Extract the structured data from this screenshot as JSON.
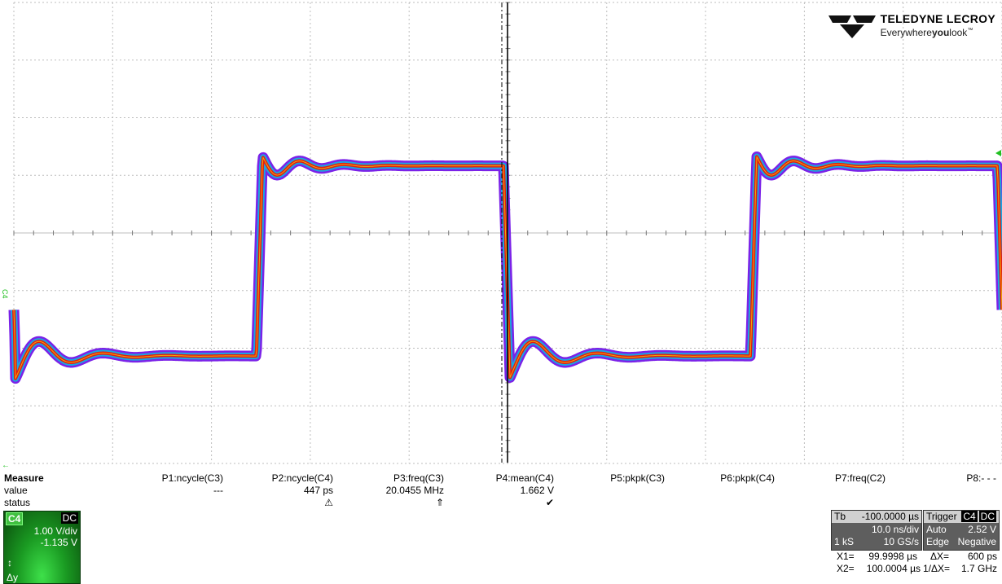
{
  "brand": {
    "wordmark": "TELEDYNE LECROY",
    "tagline_pre": "Everywhere",
    "tagline_bold": "you",
    "tagline_post": "look",
    "tm": "™"
  },
  "channel_marker": "C4",
  "colors": {
    "grid": "#bdbdbd",
    "trace_outer": "#7b22e8",
    "trace_mid": "#1aa6e0",
    "trace_core": "#e21c12",
    "trace_hot": "#f0d000",
    "marker": "#22c022"
  },
  "measure": {
    "header": "Measure",
    "rows": [
      "value",
      "status"
    ],
    "params": [
      {
        "name": "P1:ncycle(C3)",
        "value": "---",
        "status": ""
      },
      {
        "name": "P2:ncycle(C4)",
        "value": "447 ps",
        "status": "⚠"
      },
      {
        "name": "P3:freq(C3)",
        "value": "20.0455 MHz",
        "status": "⇑"
      },
      {
        "name": "P4:mean(C4)",
        "value": "1.662 V",
        "status": "✔"
      },
      {
        "name": "P5:pkpk(C3)",
        "value": "",
        "status": ""
      },
      {
        "name": "P6:pkpk(C4)",
        "value": "",
        "status": ""
      },
      {
        "name": "P7:freq(C2)",
        "value": "",
        "status": ""
      },
      {
        "name": "P8:- - -",
        "value": "",
        "status": ""
      }
    ]
  },
  "channel": {
    "label": "C4",
    "coupling": "DC",
    "vdiv": "1.00 V/div",
    "offset": "-1.135 V",
    "delta": "Δy"
  },
  "timebase": {
    "label": "Tb",
    "delay": "-100.0000 µs",
    "tdiv": "10.0 ns/div",
    "samples": "1 kS",
    "rate": "10 GS/s"
  },
  "trigger": {
    "label": "Trigger",
    "src": "C4",
    "coupling": "DC",
    "mode": "Auto",
    "level": "2.52 V",
    "type": "Edge",
    "slope": "Negative"
  },
  "cursors": {
    "x1_label": "X1=",
    "x1": "99.9998 µs",
    "x2_label": "X2=",
    "x2": "100.0004 µs",
    "dx_label": "ΔX=",
    "dx": "600 ps",
    "inv_label": "1/ΔX=",
    "inv": "1.7 GHz"
  },
  "waveform": {
    "low_level_v": -1.0,
    "high_level_v": 2.3,
    "period_ns": 50,
    "v_per_div": 1.0,
    "offset_v": -1.135,
    "divisions_x": 10,
    "divisions_y": 8
  }
}
